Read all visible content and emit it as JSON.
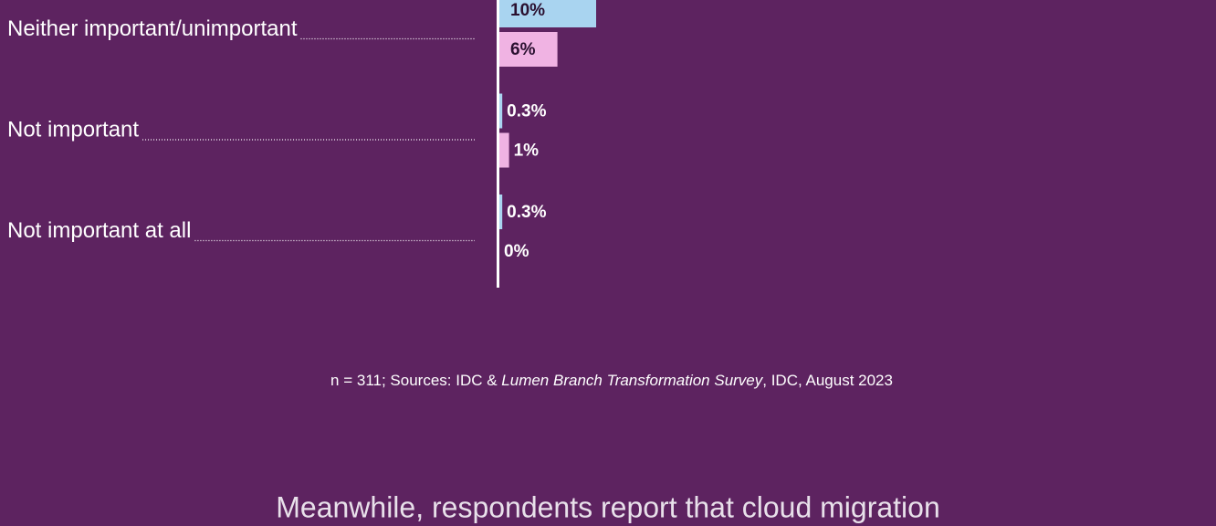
{
  "chart_data": {
    "type": "bar",
    "orientation": "horizontal",
    "categories": [
      "Neither important/unimportant",
      "Not important",
      "Not important at all"
    ],
    "series": [
      {
        "color": "#a9d4f0",
        "values": [
          10,
          0.3,
          0.3
        ],
        "value_labels": [
          "10%",
          "0.3%",
          "0.3%"
        ]
      },
      {
        "color": "#f0b3e3",
        "values": [
          6,
          1,
          0
        ],
        "value_labels": [
          "6%",
          "1%",
          "0%"
        ]
      }
    ],
    "xlim": [
      0,
      10
    ],
    "footnote": [
      "n = 311; Sources: IDC & ",
      "Lumen Branch Transformation Survey",
      ", IDC, August 2023"
    ],
    "next_heading": "Meanwhile, respondents report that cloud migration"
  }
}
